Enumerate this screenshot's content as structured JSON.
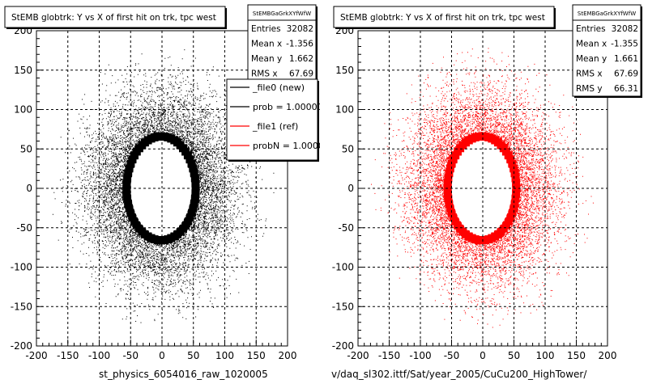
{
  "colors": {
    "background": "#ffffff",
    "frame": "#000000",
    "grid": "#000000",
    "new_series": "#000000",
    "ref_series": "#ff0000"
  },
  "chart_data": [
    {
      "type": "scatter",
      "title": "StEMB globtrk: Y vs X of first hit on trk, tpc west",
      "xlim": [
        -200,
        200
      ],
      "ylim": [
        -200,
        200
      ],
      "x_ticks": [
        "-200",
        "-150",
        "-100",
        "-50",
        "0",
        "50",
        "100",
        "150",
        "200"
      ],
      "y_ticks": [
        "200",
        "150",
        "100",
        "50",
        "0",
        "-50",
        "-100",
        "-150",
        "-200"
      ],
      "grid": true,
      "stats": {
        "name": "StEMBGaGrkXYfWfW",
        "rows": [
          {
            "label": "Entries",
            "value": "32082"
          },
          {
            "label": "Mean x",
            "value": "-1.356"
          },
          {
            "label": "Mean y",
            "value": "1.662"
          },
          {
            "label": "RMS x",
            "value": "67.69"
          }
        ]
      },
      "legend": {
        "placement": "top-right",
        "entries": [
          "_file0 (new)",
          "prob = 1.000000",
          "_file1 (ref)",
          "probN = 1.000000"
        ]
      },
      "series": [
        {
          "color": "#000000",
          "entries": 32082,
          "mean_x": -1.356,
          "mean_y": 1.662,
          "rms_x": 67.69
        }
      ],
      "inner_hole": {
        "x": [
          -53,
          53
        ],
        "y": [
          -65,
          63
        ]
      }
    },
    {
      "type": "scatter",
      "title": "StEMB globtrk: Y vs X of first hit on trk, tpc west",
      "xlim": [
        -200,
        200
      ],
      "ylim": [
        -200,
        200
      ],
      "x_ticks": [
        "-200",
        "-150",
        "-100",
        "-50",
        "0",
        "50",
        "100",
        "150",
        "200"
      ],
      "y_ticks": [
        "200",
        "150",
        "100",
        "50",
        "0",
        "-50",
        "-100",
        "-150",
        "-200"
      ],
      "grid": true,
      "stats": {
        "name": "StEMBGaGrkXYfWfW",
        "rows": [
          {
            "label": "Entries",
            "value": "32082"
          },
          {
            "label": "Mean x",
            "value": "-1.355"
          },
          {
            "label": "Mean y",
            "value": "1.661"
          },
          {
            "label": "RMS x",
            "value": "67.69"
          },
          {
            "label": "RMS y",
            "value": "66.31"
          }
        ]
      },
      "series": [
        {
          "color": "#ff0000",
          "entries": 32082,
          "mean_x": -1.355,
          "mean_y": 1.661,
          "rms_x": 67.69,
          "rms_y": 66.31
        }
      ],
      "inner_hole": {
        "x": [
          -53,
          53
        ],
        "y": [
          -65,
          63
        ]
      }
    }
  ],
  "footer": {
    "left_label": "st_physics_6054016_raw_1020005",
    "right_label": "v/daq_sl302.ittf/Sat/year_2005/CuCu200_HighTower/"
  }
}
